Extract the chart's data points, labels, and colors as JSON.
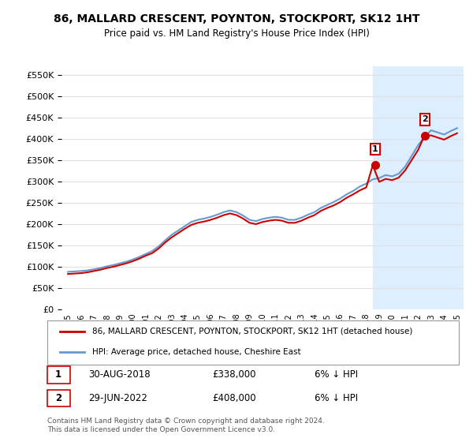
{
  "title": "86, MALLARD CRESCENT, POYNTON, STOCKPORT, SK12 1HT",
  "subtitle": "Price paid vs. HM Land Registry's House Price Index (HPI)",
  "ylabel_ticks": [
    "£0",
    "£50K",
    "£100K",
    "£150K",
    "£200K",
    "£250K",
    "£300K",
    "£350K",
    "£400K",
    "£450K",
    "£500K",
    "£550K"
  ],
  "ytick_values": [
    0,
    50000,
    100000,
    150000,
    200000,
    250000,
    300000,
    350000,
    400000,
    450000,
    500000,
    550000
  ],
  "ylim": [
    0,
    570000
  ],
  "xlim_start": 1995.0,
  "xlim_end": 2025.5,
  "background_color": "#ffffff",
  "plot_bg_color": "#ffffff",
  "grid_color": "#e0e0e0",
  "legend_label_red": "86, MALLARD CRESCENT, POYNTON, STOCKPORT, SK12 1HT (detached house)",
  "legend_label_blue": "HPI: Average price, detached house, Cheshire East",
  "annotation1_label": "1",
  "annotation1_date": "30-AUG-2018",
  "annotation1_price": "£338,000",
  "annotation1_hpi": "6% ↓ HPI",
  "annotation2_label": "2",
  "annotation2_date": "29-JUN-2022",
  "annotation2_price": "£408,000",
  "annotation2_hpi": "6% ↓ HPI",
  "footer": "Contains HM Land Registry data © Crown copyright and database right 2024.\nThis data is licensed under the Open Government Licence v3.0.",
  "red_color": "#cc0000",
  "blue_color": "#6699cc",
  "marker_red": "#cc0000",
  "sale1_x": 2018.67,
  "sale1_y": 338000,
  "sale2_x": 2022.5,
  "sale2_y": 408000,
  "hpi_years": [
    1995,
    1995.5,
    1996,
    1996.5,
    1997,
    1997.5,
    1998,
    1998.5,
    1999,
    1999.5,
    2000,
    2000.5,
    2001,
    2001.5,
    2002,
    2002.5,
    2003,
    2003.5,
    2004,
    2004.5,
    2005,
    2005.5,
    2006,
    2006.5,
    2007,
    2007.5,
    2008,
    2008.5,
    2009,
    2009.5,
    2010,
    2010.5,
    2011,
    2011.5,
    2012,
    2012.5,
    2013,
    2013.5,
    2014,
    2014.5,
    2015,
    2015.5,
    2016,
    2016.5,
    2017,
    2017.5,
    2018,
    2018.5,
    2019,
    2019.5,
    2020,
    2020.5,
    2021,
    2021.5,
    2022,
    2022.5,
    2023,
    2023.5,
    2024,
    2024.5,
    2025
  ],
  "hpi_values": [
    88000,
    89000,
    90000,
    91500,
    94000,
    97000,
    101000,
    104000,
    108000,
    112000,
    117000,
    123000,
    130000,
    137000,
    148000,
    162000,
    175000,
    185000,
    195000,
    205000,
    210000,
    213000,
    217000,
    222000,
    228000,
    232000,
    228000,
    220000,
    210000,
    207000,
    212000,
    215000,
    217000,
    215000,
    210000,
    210000,
    215000,
    222000,
    228000,
    238000,
    245000,
    252000,
    260000,
    270000,
    278000,
    288000,
    295000,
    305000,
    308000,
    315000,
    312000,
    318000,
    335000,
    360000,
    385000,
    405000,
    420000,
    415000,
    410000,
    418000,
    425000
  ],
  "red_years": [
    1995,
    1995.5,
    1996,
    1996.5,
    1997,
    1997.5,
    1998,
    1998.5,
    1999,
    1999.5,
    2000,
    2000.5,
    2001,
    2001.5,
    2002,
    2002.5,
    2003,
    2003.5,
    2004,
    2004.5,
    2005,
    2005.5,
    2006,
    2006.5,
    2007,
    2007.5,
    2008,
    2008.5,
    2009,
    2009.5,
    2010,
    2010.5,
    2011,
    2011.5,
    2012,
    2012.5,
    2013,
    2013.5,
    2014,
    2014.5,
    2015,
    2015.5,
    2016,
    2016.5,
    2017,
    2017.5,
    2018,
    2018.5,
    2019,
    2019.5,
    2020,
    2020.5,
    2021,
    2021.5,
    2022,
    2022.5,
    2023,
    2023.5,
    2024,
    2024.5,
    2025
  ],
  "red_values": [
    83000,
    84000,
    85000,
    87000,
    90000,
    93000,
    97000,
    100000,
    104000,
    108000,
    113000,
    119000,
    126000,
    132000,
    143000,
    157000,
    169000,
    179000,
    189000,
    198000,
    203000,
    206000,
    210000,
    215000,
    221000,
    225000,
    221000,
    213000,
    203000,
    200000,
    205000,
    208000,
    210000,
    208000,
    203000,
    203000,
    208000,
    215000,
    221000,
    231000,
    238000,
    244000,
    252000,
    262000,
    270000,
    279000,
    286000,
    338000,
    299000,
    306000,
    303000,
    309000,
    326000,
    350000,
    374000,
    408000,
    408000,
    403000,
    398000,
    406000,
    413000
  ],
  "shade_x1": 2018.5,
  "shade_x2": 2025.5,
  "shade_color": "#ddeeff"
}
